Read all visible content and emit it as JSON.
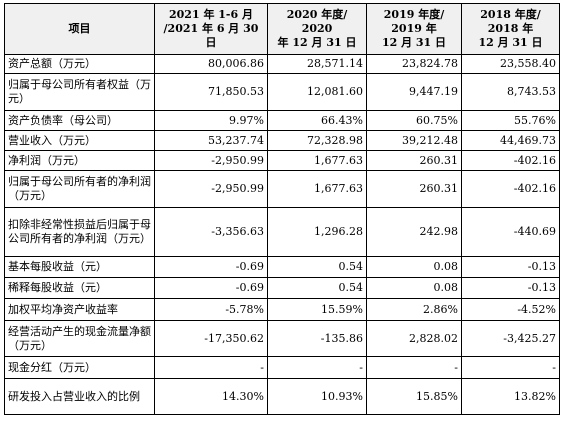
{
  "table": {
    "headers": [
      "项目",
      "2021 年 1-6 月\n/2021 年 6 月 30 日",
      "2020 年度/\n2020\n年 12 月 31 日",
      "2019 年度/\n2019 年\n12 月 31 日",
      "2018 年度/\n2018 年\n12 月 31 日"
    ],
    "rows": [
      {
        "label": "资产总额（万元）",
        "values": [
          "80,006.86",
          "28,571.14",
          "23,824.78",
          "23,558.40"
        ]
      },
      {
        "label": "归属于母公司所有者权益（万元）",
        "values": [
          "71,850.53",
          "12,081.60",
          "9,447.19",
          "8,743.53"
        ]
      },
      {
        "label": "资产负债率（母公司）",
        "values": [
          "9.97%",
          "66.43%",
          "60.75%",
          "55.76%"
        ]
      },
      {
        "label": "营业收入（万元）",
        "values": [
          "53,237.74",
          "72,328.98",
          "39,212.48",
          "44,469.73"
        ]
      },
      {
        "label": "净利润（万元）",
        "values": [
          "-2,950.99",
          "1,677.63",
          "260.31",
          "-402.16"
        ]
      },
      {
        "label": "归属于母公司所有者的净利润（万元）",
        "values": [
          "-2,950.99",
          "1,677.63",
          "260.31",
          "-402.16"
        ]
      },
      {
        "label": "扣除非经常性损益后归属于母公司所有者的净利润（万元）",
        "values": [
          "-3,356.63",
          "1,296.28",
          "242.98",
          "-440.69"
        ]
      },
      {
        "label": "基本每股收益（元）",
        "values": [
          "-0.69",
          "0.54",
          "0.08",
          "-0.13"
        ]
      },
      {
        "label": "稀释每股收益（元）",
        "values": [
          "-0.69",
          "0.54",
          "0.08",
          "-0.13"
        ]
      },
      {
        "label": "加权平均净资产收益率",
        "values": [
          "-5.78%",
          "15.59%",
          "2.86%",
          "-4.52%"
        ]
      },
      {
        "label": "经营活动产生的现金流量净额（万元）",
        "values": [
          "-17,350.62",
          "-135.86",
          "2,828.02",
          "-3,425.27"
        ]
      },
      {
        "label": "现金分红（万元）",
        "values": [
          "-",
          "-",
          "-",
          "-"
        ]
      },
      {
        "label": "研发投入占营业收入的比例",
        "values": [
          "14.30%",
          "10.93%",
          "15.85%",
          "13.82%"
        ]
      }
    ]
  }
}
